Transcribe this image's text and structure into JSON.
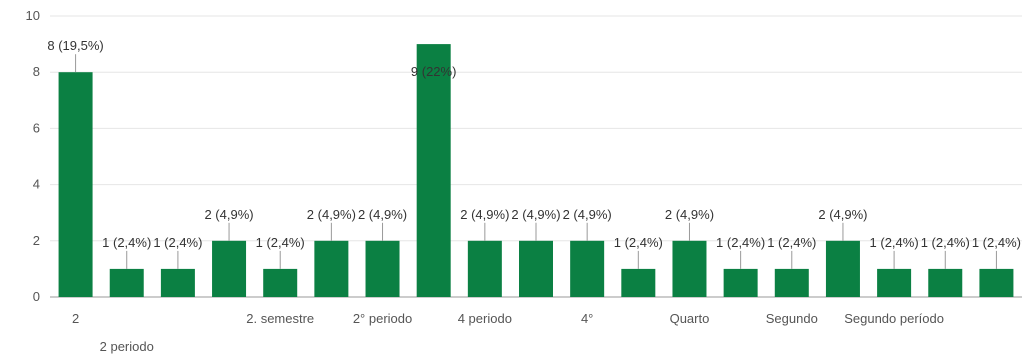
{
  "chart_data": {
    "type": "bar",
    "title": "",
    "xlabel": "",
    "ylabel": "",
    "ylim": [
      0,
      10
    ],
    "yticks": [
      0,
      2,
      4,
      6,
      8,
      10
    ],
    "grid": true,
    "bar_color": "#0b8043",
    "categories": [
      "2",
      "2 periodo",
      "",
      "",
      "2. semestre",
      "",
      "2° periodo",
      "",
      "4 periodo",
      "",
      "4°",
      "",
      "Quarto",
      "",
      "Segundo",
      "",
      "Segundo período",
      "",
      ""
    ],
    "values": [
      8,
      1,
      1,
      2,
      1,
      2,
      2,
      9,
      2,
      2,
      2,
      1,
      2,
      1,
      1,
      2,
      1,
      1,
      1
    ],
    "data_labels": [
      "8 (19,5%)",
      "1 (2,4%)",
      "1 (2,4%)",
      "2 (4,9%)",
      "1 (2,4%)",
      "2 (4,9%)",
      "2 (4,9%)",
      "9 (22%)",
      "2 (4,9%)",
      "2 (4,9%)",
      "2 (4,9%)",
      "1 (2,4%)",
      "2 (4,9%)",
      "1 (2,4%)",
      "1 (2,4%)",
      "2 (4,9%)",
      "1 (2,4%)",
      "1 (2,4%)",
      "1 (2,4%)"
    ]
  }
}
